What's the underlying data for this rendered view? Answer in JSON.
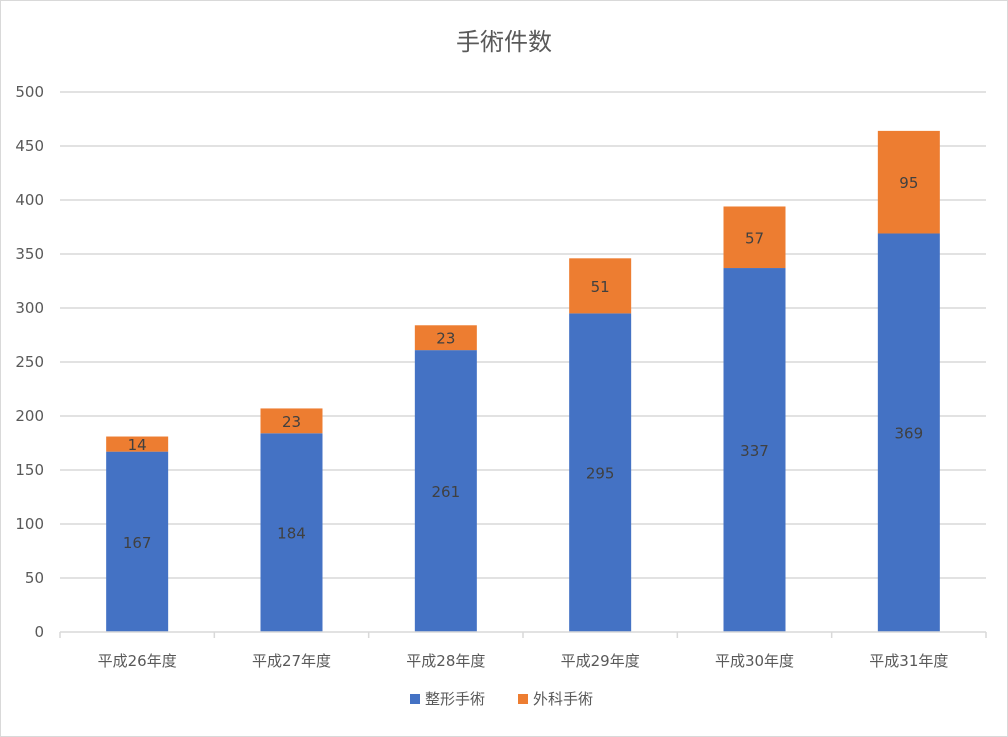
{
  "chart_data": {
    "type": "bar",
    "stacked": true,
    "title": "手術件数",
    "categories": [
      "平成26年度",
      "平成27年度",
      "平成28年度",
      "平成29年度",
      "平成30年度",
      "平成31年度"
    ],
    "series": [
      {
        "name": "整形手術",
        "color": "#4472c4",
        "values": [
          167,
          184,
          261,
          295,
          337,
          369
        ]
      },
      {
        "name": "外科手術",
        "color": "#ed7d31",
        "values": [
          14,
          23,
          23,
          51,
          57,
          95
        ]
      }
    ],
    "ylim": [
      0,
      500
    ],
    "yticks": [
      0,
      50,
      100,
      150,
      200,
      250,
      300,
      350,
      400,
      450,
      500
    ],
    "grid": true,
    "legend_position": "bottom"
  }
}
